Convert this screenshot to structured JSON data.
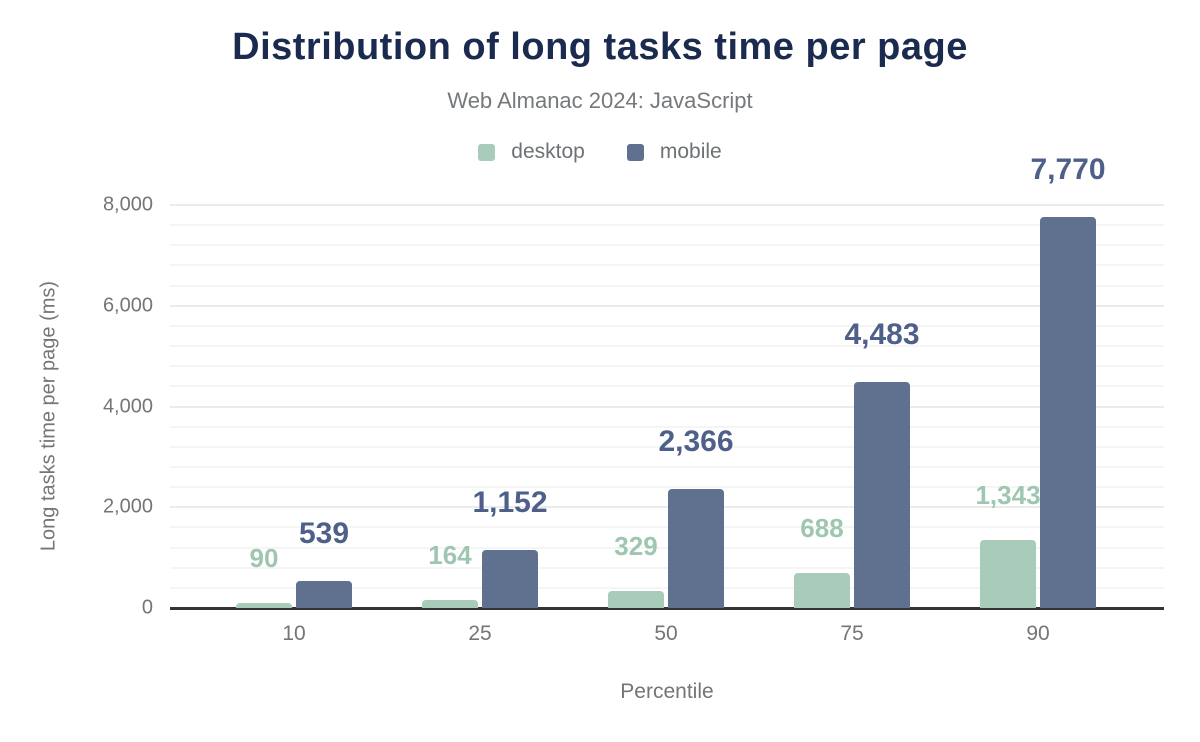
{
  "chart_data": {
    "type": "bar",
    "title": "Distribution of long tasks time per page",
    "subtitle": "Web Almanac 2024: JavaScript",
    "xlabel": "Percentile",
    "ylabel": "Long tasks time per page (ms)",
    "categories": [
      "10",
      "25",
      "50",
      "75",
      "90"
    ],
    "series": [
      {
        "name": "desktop",
        "color": "#a9cbb9",
        "label_color": "#9fc6b1",
        "values": [
          90,
          164,
          329,
          688,
          1343
        ],
        "value_labels": [
          "90",
          "164",
          "329",
          "688",
          "1,343"
        ]
      },
      {
        "name": "mobile",
        "color": "#5f718e",
        "label_color": "#4e6089",
        "values": [
          539,
          1152,
          2366,
          4483,
          7770
        ],
        "value_labels": [
          "539",
          "1,152",
          "2,366",
          "4,483",
          "7,770"
        ]
      }
    ],
    "ylim": [
      0,
      8000
    ],
    "y_major_ticks": [
      0,
      2000,
      4000,
      6000,
      8000
    ],
    "y_major_tick_labels": [
      "0",
      "2,000",
      "4,000",
      "6,000",
      "8,000"
    ],
    "y_minor_step": 400,
    "grid": "on",
    "legend_position": "top"
  },
  "colors": {
    "title": "#1b2b4f",
    "subtitle": "#75797c",
    "axis_text": "#757575",
    "axis_line": "#333333",
    "grid_major": "#ebebeb",
    "grid_minor": "#f5f5f5",
    "background": "#ffffff"
  }
}
